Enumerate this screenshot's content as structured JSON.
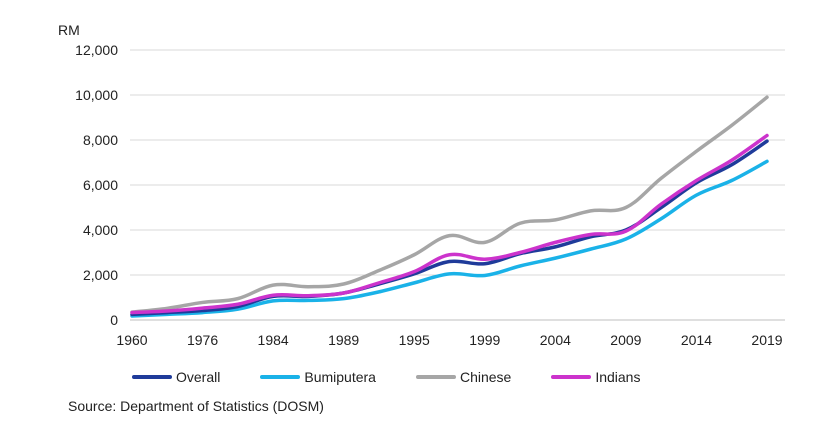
{
  "chart_data": {
    "type": "line",
    "title": "",
    "ylabel": "RM",
    "xlabel": "",
    "ylim": [
      0,
      12000
    ],
    "yticks": [
      0,
      2000,
      4000,
      6000,
      8000,
      10000,
      12000
    ],
    "ytick_labels": [
      "0",
      "2,000",
      "4,000",
      "6,000",
      "8,000",
      "10,000",
      "12,000"
    ],
    "x": [
      1960,
      1976,
      1984,
      1989,
      1995,
      1999,
      2004,
      2009,
      2014,
      2019
    ],
    "x_labels": [
      "1960",
      "1976",
      "1984",
      "1989",
      "1995",
      "1999",
      "2004",
      "2009",
      "2014",
      "2019"
    ],
    "grid": true,
    "series": [
      {
        "name": "Overall",
        "color": "#1f3b9a",
        "values": [
          [
            0,
            250
          ],
          [
            0.5,
            330
          ],
          [
            1,
            420
          ],
          [
            1.5,
            600
          ],
          [
            2,
            1050
          ],
          [
            2.5,
            1050
          ],
          [
            3,
            1200
          ],
          [
            3.5,
            1600
          ],
          [
            4,
            2050
          ],
          [
            4.5,
            2600
          ],
          [
            5,
            2500
          ],
          [
            5.5,
            2950
          ],
          [
            6,
            3250
          ],
          [
            6.5,
            3700
          ],
          [
            7,
            4000
          ],
          [
            7.5,
            5000
          ],
          [
            8,
            6100
          ],
          [
            8.5,
            6900
          ],
          [
            9,
            7950
          ]
        ]
      },
      {
        "name": "Bumiputera",
        "color": "#1ab2e8",
        "values": [
          [
            0,
            180
          ],
          [
            0.5,
            250
          ],
          [
            1,
            330
          ],
          [
            1.5,
            480
          ],
          [
            2,
            850
          ],
          [
            2.5,
            870
          ],
          [
            3,
            950
          ],
          [
            3.5,
            1250
          ],
          [
            4,
            1650
          ],
          [
            4.5,
            2050
          ],
          [
            5,
            1980
          ],
          [
            5.5,
            2400
          ],
          [
            6,
            2750
          ],
          [
            6.5,
            3150
          ],
          [
            7,
            3600
          ],
          [
            7.5,
            4500
          ],
          [
            8,
            5550
          ],
          [
            8.5,
            6200
          ],
          [
            9,
            7050
          ]
        ]
      },
      {
        "name": "Chinese",
        "color": "#a6a6a6",
        "values": [
          [
            0,
            350
          ],
          [
            0.5,
            520
          ],
          [
            1,
            780
          ],
          [
            1.5,
            950
          ],
          [
            2,
            1550
          ],
          [
            2.5,
            1480
          ],
          [
            3,
            1600
          ],
          [
            3.5,
            2200
          ],
          [
            4,
            2900
          ],
          [
            4.5,
            3750
          ],
          [
            5,
            3450
          ],
          [
            5.5,
            4300
          ],
          [
            6,
            4450
          ],
          [
            6.5,
            4850
          ],
          [
            7,
            5000
          ],
          [
            7.5,
            6300
          ],
          [
            8,
            7500
          ],
          [
            8.5,
            8650
          ],
          [
            9,
            9900
          ]
        ]
      },
      {
        "name": "Indians",
        "color": "#cc33cc",
        "values": [
          [
            0,
            330
          ],
          [
            0.5,
            400
          ],
          [
            1,
            530
          ],
          [
            1.5,
            700
          ],
          [
            2,
            1100
          ],
          [
            2.5,
            1080
          ],
          [
            3,
            1200
          ],
          [
            3.5,
            1650
          ],
          [
            4,
            2150
          ],
          [
            4.5,
            2900
          ],
          [
            5,
            2700
          ],
          [
            5.5,
            3000
          ],
          [
            6,
            3450
          ],
          [
            6.5,
            3800
          ],
          [
            7,
            3950
          ],
          [
            7.5,
            5150
          ],
          [
            8,
            6200
          ],
          [
            8.5,
            7100
          ],
          [
            9,
            8200
          ]
        ]
      }
    ]
  },
  "source_note": "Source: Department of Statistics (DOSM)"
}
